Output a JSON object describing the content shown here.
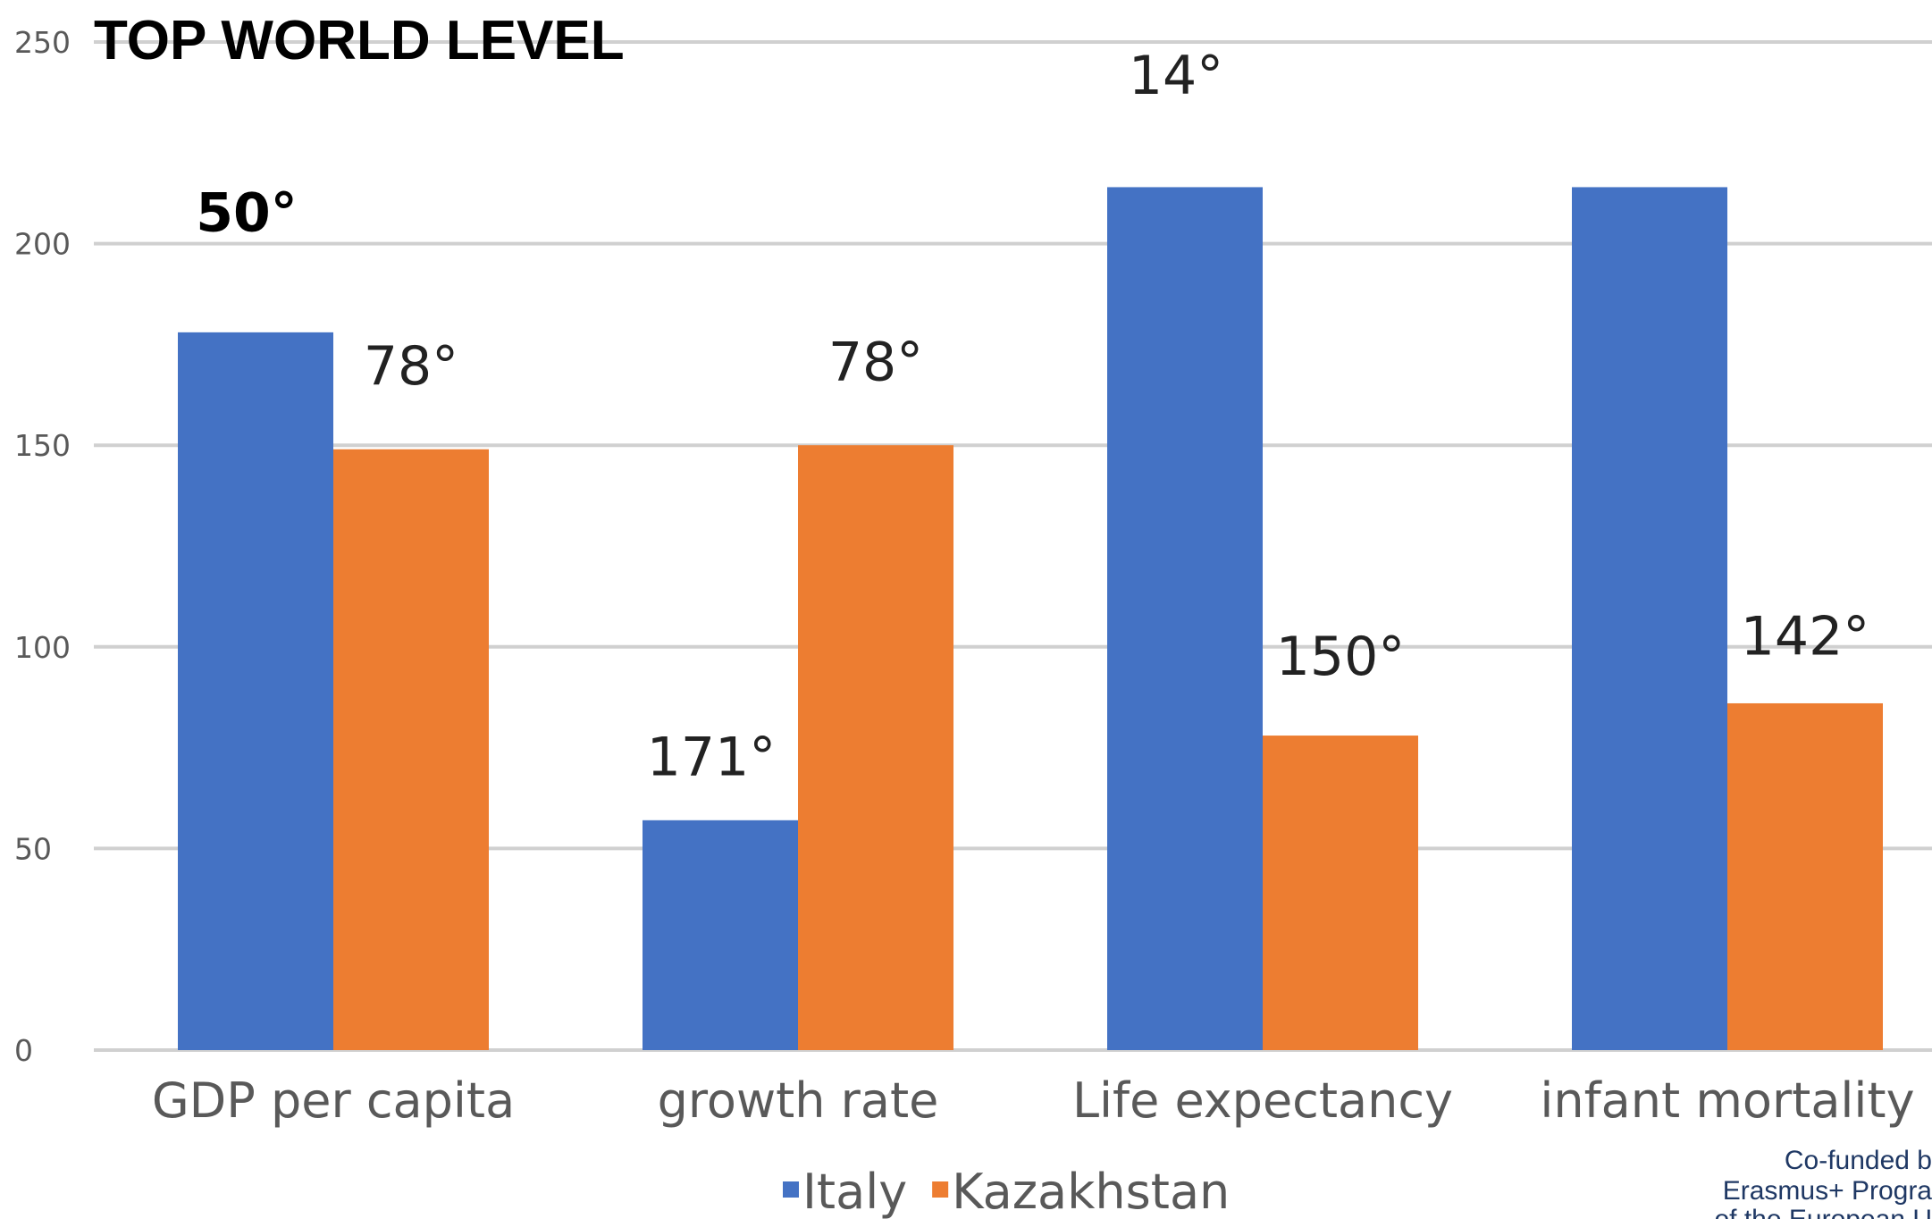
{
  "chart_data": {
    "type": "bar",
    "title": "TOP WORLD LEVEL",
    "categories": [
      "GDP per capita",
      "growth rate",
      "Life expectancy",
      "infant mortality"
    ],
    "series": [
      {
        "name": "Italy",
        "color": "#4472c4",
        "values": [
          178,
          57,
          214,
          214
        ]
      },
      {
        "name": "Kazakhstan",
        "color": "#ed7d31",
        "values": [
          149,
          150,
          78,
          86
        ]
      }
    ],
    "ylim": [
      0,
      250
    ],
    "yticks": [
      0,
      50,
      100,
      150,
      200,
      250
    ],
    "grid": true,
    "legend_position": "bottom",
    "annotations": [
      {
        "text": "50°",
        "category": "GDP per capita",
        "series": "Italy",
        "y": 208,
        "bold": true
      },
      {
        "text": "78°",
        "category": "GDP per capita",
        "series": "Kazakhstan",
        "y": 170,
        "bold": false
      },
      {
        "text": "171°",
        "category": "growth rate",
        "series": "Italy",
        "y": 73,
        "bold": false
      },
      {
        "text": "78°",
        "category": "growth rate",
        "series": "Kazakhstan",
        "y": 171,
        "bold": false
      },
      {
        "text": "14°",
        "category": "Life expectancy",
        "series": "Italy",
        "y": 242,
        "bold": false
      },
      {
        "text": "150°",
        "category": "Life expectancy",
        "series": "Kazakhstan",
        "y": 98,
        "bold": false
      },
      {
        "text": "142°",
        "category": "infant mortality",
        "series": "Kazakhstan",
        "y": 103,
        "bold": false
      }
    ]
  },
  "footer": {
    "line1": "Co-funded b",
    "line2": "Erasmus+ Progra",
    "line3": "of the European U"
  }
}
